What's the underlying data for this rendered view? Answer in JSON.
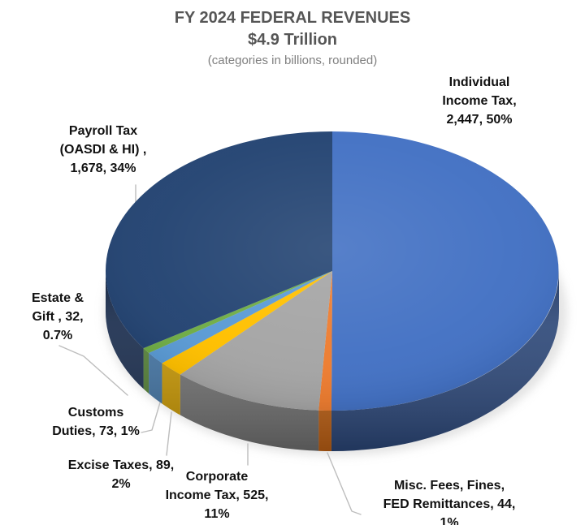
{
  "header": {
    "title": "FY 2024 FEDERAL REVENUES",
    "subtitle": "$4.9 Trillion",
    "note": "(categories in billions, rounded)"
  },
  "labels": {
    "individual": "Individual\nIncome Tax,\n2,447, 50%",
    "payroll": "Payroll Tax\n(OASDI & HI) ,\n1,678, 34%",
    "estate": "Estate &\nGift , 32,\n0.7%",
    "customs": "Customs\nDuties, 73, 1%",
    "excise": "Excise Taxes, 89,\n2%",
    "corporate": "Corporate\nIncome Tax, 525,\n11%",
    "misc": "Misc. Fees, Fines,\nFED Remittances, 44, 1%"
  },
  "chart_data": {
    "type": "pie",
    "effect": "3d",
    "title": "FY 2024 FEDERAL REVENUES",
    "subtitle": "$4.9 Trillion",
    "note": "(categories in billions, rounded)",
    "units": "billions of USD",
    "total": 4888,
    "start_position": "12-oclock",
    "direction": "clockwise",
    "slices": [
      {
        "name": "Individual Income Tax",
        "value": 2447,
        "pct_label": "50%",
        "color": "#4472C4",
        "side_color": "#2A4576"
      },
      {
        "name": "Misc. Fees, Fines, FED Remittances",
        "value": 44,
        "pct_label": "1%",
        "color": "#ED7D31",
        "side_color": "#BA5E13"
      },
      {
        "name": "Corporate Income Tax",
        "value": 525,
        "pct_label": "11%",
        "color": "#A5A5A5",
        "side_color": "#6E6E6E"
      },
      {
        "name": "Excise Taxes",
        "value": 89,
        "pct_label": "2%",
        "color": "#FFC000",
        "side_color": "#C29200"
      },
      {
        "name": "Customs Duties",
        "value": 73,
        "pct_label": "1%",
        "color": "#5B9BD5",
        "side_color": "#3E6F9E"
      },
      {
        "name": "Estate & Gift",
        "value": 32,
        "pct_label": "0.7%",
        "color": "#70AD47",
        "side_color": "#4E7A31"
      },
      {
        "name": "Payroll Tax (OASDI & HI)",
        "value": 1678,
        "pct_label": "34%",
        "color": "#254573",
        "side_color": "#16294A"
      }
    ]
  },
  "colors": {
    "background": "#FFFFFF",
    "title_text": "#565656",
    "note_text": "#7F7F7F",
    "label_text": "#111111",
    "leader_line": "#BDBDBD"
  }
}
